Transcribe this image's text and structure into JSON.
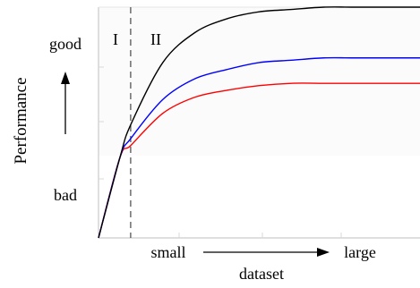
{
  "chart_data": {
    "type": "line",
    "xlabel": "dataset",
    "ylabel": "Performance",
    "x_axis_labels": {
      "low": "small",
      "high": "large"
    },
    "y_axis_labels": {
      "low": "bad",
      "high": "good"
    },
    "regions": [
      {
        "label": "I",
        "x_from": 0,
        "x_to": 0.1
      },
      {
        "label": "II",
        "x_from": 0.1,
        "x_to": 1.0
      }
    ],
    "boundary_x": 0.1,
    "boundary_style": "dashed",
    "xlim": [
      0,
      1
    ],
    "ylim": [
      0,
      1
    ],
    "grid": false,
    "legend": "none",
    "series": [
      {
        "color": "#000000",
        "x": [
          0,
          0.067,
          0.1,
          0.2,
          0.3,
          0.4,
          0.5,
          0.6,
          0.7,
          0.8,
          0.9,
          1.0
        ],
        "values": [
          0,
          0.35,
          0.49,
          0.76,
          0.89,
          0.95,
          0.98,
          0.99,
          1.0,
          1.0,
          1.0,
          1.0
        ]
      },
      {
        "color": "#0000ff",
        "x": [
          0,
          0.067,
          0.1,
          0.2,
          0.3,
          0.4,
          0.5,
          0.6,
          0.7,
          0.8,
          0.9,
          1.0
        ],
        "values": [
          0,
          0.35,
          0.43,
          0.6,
          0.69,
          0.73,
          0.76,
          0.77,
          0.78,
          0.78,
          0.78,
          0.78
        ]
      },
      {
        "color": "#ff0000",
        "x": [
          0,
          0.067,
          0.1,
          0.2,
          0.3,
          0.4,
          0.5,
          0.6,
          0.7,
          0.8,
          0.9,
          1.0
        ],
        "values": [
          0,
          0.35,
          0.4,
          0.54,
          0.61,
          0.64,
          0.66,
          0.67,
          0.67,
          0.67,
          0.67,
          0.67
        ]
      }
    ]
  }
}
